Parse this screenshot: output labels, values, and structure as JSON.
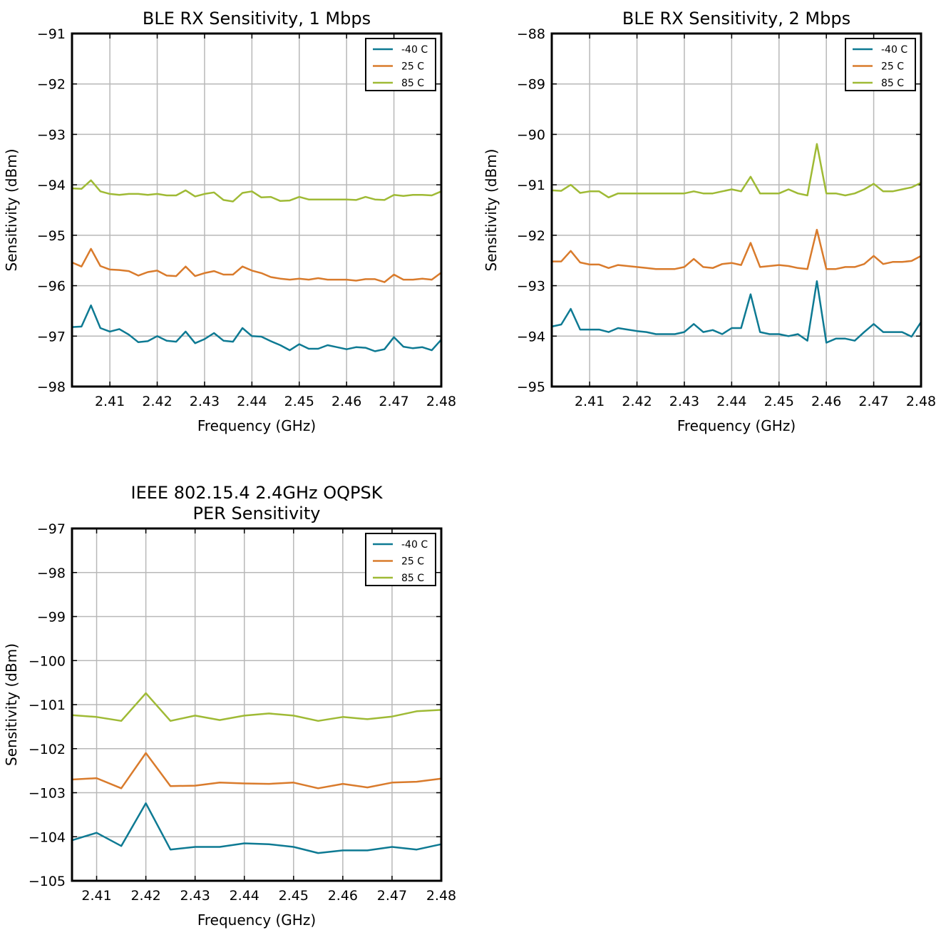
{
  "colors": {
    "-40 C": "#0e7a93",
    "25 C": "#d97b2c",
    "85 C": "#9fba35"
  },
  "chart_data": [
    {
      "type": "line",
      "title": "BLE RX Sensitivity, 1 Mbps",
      "xlabel": "Frequency (GHz)",
      "ylabel": "Sensitivity (dBm)",
      "xlim": [
        2.402,
        2.48
      ],
      "ylim": [
        -98,
        -91
      ],
      "xticks": [
        2.41,
        2.42,
        2.43,
        2.44,
        2.45,
        2.46,
        2.47,
        2.48
      ],
      "xtick_labels": [
        "2.41",
        "2.42",
        "2.43",
        "2.44",
        "2.45",
        "2.46",
        "2.47",
        "2.48"
      ],
      "yticks": [
        -98,
        -97,
        -96,
        -95,
        -94,
        -93,
        -92,
        -91
      ],
      "ytick_labels": [
        "−98",
        "−97",
        "−96",
        "−95",
        "−94",
        "−93",
        "−92",
        "−91"
      ],
      "grid": true,
      "legend": "top-right",
      "x": [
        2.402,
        2.404,
        2.406,
        2.408,
        2.41,
        2.412,
        2.414,
        2.416,
        2.418,
        2.42,
        2.422,
        2.424,
        2.426,
        2.428,
        2.43,
        2.432,
        2.434,
        2.436,
        2.438,
        2.44,
        2.442,
        2.444,
        2.446,
        2.448,
        2.45,
        2.452,
        2.454,
        2.456,
        2.458,
        2.46,
        2.462,
        2.464,
        2.466,
        2.468,
        2.47,
        2.472,
        2.474,
        2.476,
        2.478,
        2.48
      ],
      "series": [
        {
          "name": "-40 C",
          "values": [
            -96.82,
            -96.81,
            -96.39,
            -96.84,
            -96.91,
            -96.86,
            -96.97,
            -97.12,
            -97.1,
            -97.0,
            -97.09,
            -97.11,
            -96.91,
            -97.14,
            -97.06,
            -96.94,
            -97.09,
            -97.11,
            -96.84,
            -97.0,
            -97.01,
            -97.1,
            -97.18,
            -97.28,
            -97.16,
            -97.25,
            -97.25,
            -97.18,
            -97.22,
            -97.26,
            -97.22,
            -97.23,
            -97.3,
            -97.26,
            -97.02,
            -97.21,
            -97.24,
            -97.22,
            -97.28,
            -97.07
          ]
        },
        {
          "name": "25 C",
          "values": [
            -95.54,
            -95.62,
            -95.27,
            -95.61,
            -95.68,
            -95.69,
            -95.71,
            -95.8,
            -95.73,
            -95.7,
            -95.8,
            -95.81,
            -95.62,
            -95.81,
            -95.75,
            -95.71,
            -95.78,
            -95.78,
            -95.62,
            -95.7,
            -95.75,
            -95.83,
            -95.86,
            -95.88,
            -95.86,
            -95.88,
            -95.85,
            -95.88,
            -95.88,
            -95.88,
            -95.9,
            -95.87,
            -95.87,
            -95.93,
            -95.78,
            -95.88,
            -95.88,
            -95.86,
            -95.88,
            -95.74
          ]
        },
        {
          "name": "85 C",
          "values": [
            -94.07,
            -94.08,
            -93.91,
            -94.13,
            -94.18,
            -94.2,
            -94.18,
            -94.18,
            -94.2,
            -94.18,
            -94.21,
            -94.21,
            -94.11,
            -94.23,
            -94.18,
            -94.15,
            -94.3,
            -94.33,
            -94.16,
            -94.13,
            -94.25,
            -94.24,
            -94.32,
            -94.31,
            -94.24,
            -94.29,
            -94.29,
            -94.29,
            -94.29,
            -94.29,
            -94.3,
            -94.24,
            -94.29,
            -94.3,
            -94.2,
            -94.22,
            -94.2,
            -94.2,
            -94.21,
            -94.13
          ]
        }
      ]
    },
    {
      "type": "line",
      "title": "BLE RX Sensitivity, 2 Mbps",
      "xlabel": "Frequency (GHz)",
      "ylabel": "Sensitivity (dBm)",
      "xlim": [
        2.402,
        2.48
      ],
      "ylim": [
        -95,
        -88
      ],
      "xticks": [
        2.41,
        2.42,
        2.43,
        2.44,
        2.45,
        2.46,
        2.47,
        2.48
      ],
      "xtick_labels": [
        "2.41",
        "2.42",
        "2.43",
        "2.44",
        "2.45",
        "2.46",
        "2.47",
        "2.48"
      ],
      "yticks": [
        -95,
        -94,
        -93,
        -92,
        -91,
        -90,
        -89,
        -88
      ],
      "ytick_labels": [
        "−95",
        "−94",
        "−93",
        "−92",
        "−91",
        "−90",
        "−89",
        "−88"
      ],
      "grid": true,
      "legend": "top-right",
      "x": [
        2.402,
        2.404,
        2.406,
        2.408,
        2.41,
        2.412,
        2.414,
        2.416,
        2.418,
        2.42,
        2.422,
        2.424,
        2.426,
        2.428,
        2.43,
        2.432,
        2.434,
        2.436,
        2.438,
        2.44,
        2.442,
        2.444,
        2.446,
        2.448,
        2.45,
        2.452,
        2.454,
        2.456,
        2.458,
        2.46,
        2.462,
        2.464,
        2.466,
        2.468,
        2.47,
        2.472,
        2.474,
        2.476,
        2.478,
        2.48
      ],
      "series": [
        {
          "name": "-40 C",
          "values": [
            -93.81,
            -93.77,
            -93.46,
            -93.87,
            -93.87,
            -93.87,
            -93.92,
            -93.84,
            -93.87,
            -93.9,
            -93.92,
            -93.96,
            -93.96,
            -93.96,
            -93.92,
            -93.76,
            -93.92,
            -93.88,
            -93.96,
            -93.84,
            -93.84,
            -93.17,
            -93.92,
            -93.96,
            -93.96,
            -94.0,
            -93.96,
            -94.09,
            -92.91,
            -94.13,
            -94.05,
            -94.05,
            -94.09,
            -93.92,
            -93.76,
            -93.92,
            -93.92,
            -93.92,
            -94.01,
            -93.72
          ]
        },
        {
          "name": "25 C",
          "values": [
            -92.52,
            -92.52,
            -92.31,
            -92.54,
            -92.58,
            -92.58,
            -92.65,
            -92.59,
            -92.61,
            -92.63,
            -92.65,
            -92.67,
            -92.67,
            -92.67,
            -92.63,
            -92.47,
            -92.63,
            -92.65,
            -92.57,
            -92.55,
            -92.59,
            -92.15,
            -92.63,
            -92.61,
            -92.59,
            -92.61,
            -92.65,
            -92.67,
            -91.89,
            -92.67,
            -92.67,
            -92.63,
            -92.63,
            -92.57,
            -92.41,
            -92.57,
            -92.53,
            -92.53,
            -92.51,
            -92.41
          ]
        },
        {
          "name": "85 C",
          "values": [
            -91.11,
            -91.12,
            -91.0,
            -91.16,
            -91.13,
            -91.13,
            -91.25,
            -91.17,
            -91.17,
            -91.17,
            -91.17,
            -91.17,
            -91.17,
            -91.17,
            -91.17,
            -91.13,
            -91.17,
            -91.17,
            -91.13,
            -91.09,
            -91.13,
            -90.84,
            -91.17,
            -91.17,
            -91.17,
            -91.09,
            -91.17,
            -91.21,
            -90.19,
            -91.17,
            -91.17,
            -91.21,
            -91.17,
            -91.09,
            -90.98,
            -91.13,
            -91.13,
            -91.09,
            -91.05,
            -90.96
          ]
        }
      ]
    },
    {
      "type": "line",
      "title": "IEEE 802.15.4 2.4GHz OQPSK\nPER Sensitivity",
      "xlabel": "Frequency (GHz)",
      "ylabel": "Sensitivity (dBm)",
      "xlim": [
        2.405,
        2.48
      ],
      "ylim": [
        -105,
        -97
      ],
      "xticks": [
        2.41,
        2.42,
        2.43,
        2.44,
        2.45,
        2.46,
        2.47,
        2.48
      ],
      "xtick_labels": [
        "2.41",
        "2.42",
        "2.43",
        "2.44",
        "2.45",
        "2.46",
        "2.47",
        "2.48"
      ],
      "yticks": [
        -105,
        -104,
        -103,
        -102,
        -101,
        -100,
        -99,
        -98,
        -97
      ],
      "ytick_labels": [
        "−105",
        "−104",
        "−103",
        "−102",
        "−101",
        "−100",
        "−99",
        "−98",
        "−97"
      ],
      "grid": true,
      "legend": "top-right",
      "x": [
        2.405,
        2.41,
        2.415,
        2.42,
        2.425,
        2.43,
        2.435,
        2.44,
        2.445,
        2.45,
        2.455,
        2.46,
        2.465,
        2.47,
        2.475,
        2.48
      ],
      "series": [
        {
          "name": "-40 C",
          "values": [
            -104.08,
            -103.91,
            -104.21,
            -103.24,
            -104.29,
            -104.23,
            -104.23,
            -104.15,
            -104.17,
            -104.23,
            -104.37,
            -104.31,
            -104.31,
            -104.23,
            -104.29,
            -104.17
          ]
        },
        {
          "name": "25 C",
          "values": [
            -102.7,
            -102.67,
            -102.9,
            -102.1,
            -102.85,
            -102.84,
            -102.77,
            -102.79,
            -102.8,
            -102.77,
            -102.9,
            -102.8,
            -102.88,
            -102.77,
            -102.75,
            -102.68
          ]
        },
        {
          "name": "85 C",
          "values": [
            -101.24,
            -101.28,
            -101.37,
            -100.74,
            -101.37,
            -101.25,
            -101.35,
            -101.25,
            -101.2,
            -101.25,
            -101.37,
            -101.28,
            -101.33,
            -101.27,
            -101.15,
            -101.12
          ]
        }
      ]
    }
  ]
}
